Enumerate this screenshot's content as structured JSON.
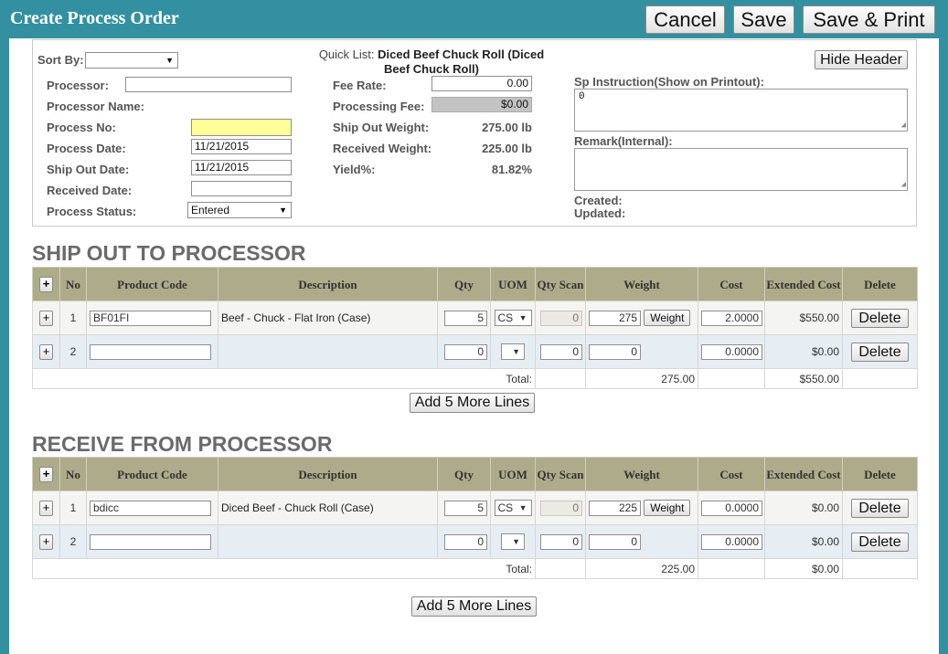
{
  "title": "Create Process Order",
  "top_buttons": {
    "cancel": "Cancel",
    "save": "Save",
    "save_print": "Save & Print"
  },
  "header": {
    "sort_by_label": "Sort By:",
    "sort_by_value": "",
    "processor_label": "Processor:",
    "processor_value": "",
    "processor_name_label": "Processor Name:",
    "process_no_label": "Process No:",
    "process_no_value": "",
    "process_date_label": "Process Date:",
    "process_date_value": "11/21/2015",
    "ship_out_date_label": "Ship Out Date:",
    "ship_out_date_value": "11/21/2015",
    "received_date_label": "Received Date:",
    "received_date_value": "",
    "process_status_label": "Process Status:",
    "process_status_value": "Entered",
    "quick_list_label": "Quick List:",
    "quick_list_value": "Diced Beef Chuck Roll (Diced Beef Chuck Roll)",
    "fee_rate_label": "Fee Rate:",
    "fee_rate_value": "0.00",
    "processing_fee_label": "Processing Fee:",
    "processing_fee_value": "$0.00",
    "ship_out_weight_label": "Ship Out Weight:",
    "ship_out_weight_value": "275.00 lb",
    "received_weight_label": "Received Weight:",
    "received_weight_value": "225.00 lb",
    "yield_label": "Yield%:",
    "yield_value": "81.82%",
    "hide_header_button": "Hide Header",
    "sp_instruction_label": "Sp Instruction(Show on Printout):",
    "sp_instruction_value": "0",
    "remark_label": "Remark(Internal):",
    "remark_value": "",
    "created_label": "Created:",
    "updated_label": "Updated:"
  },
  "columns": [
    "+",
    "No",
    "Product Code",
    "Description",
    "Qty",
    "UOM",
    "Qty Scan",
    "Weight",
    "Cost",
    "Extended Cost",
    "Delete"
  ],
  "ship_out": {
    "title": "SHIP OUT TO PROCESSOR",
    "rows": [
      {
        "no": "1",
        "product_code": "BF01FI",
        "description": "Beef - Chuck - Flat Iron (Case)",
        "qty": "5",
        "uom": "CS",
        "qty_scan": "0",
        "weight": "275",
        "weight_button": "Weight",
        "cost": "2.0000",
        "extended_cost": "$550.00",
        "delete": "Delete"
      },
      {
        "no": "2",
        "product_code": "",
        "description": "",
        "qty": "0",
        "uom": "",
        "qty_scan": "0",
        "weight": "0",
        "weight_button": "",
        "cost": "0.0000",
        "extended_cost": "$0.00",
        "delete": "Delete"
      }
    ],
    "total_label": "Total:",
    "total_weight": "275.00",
    "total_extended": "$550.00",
    "add_lines": "Add 5 More Lines"
  },
  "receive": {
    "title": "RECEIVE FROM PROCESSOR",
    "rows": [
      {
        "no": "1",
        "product_code": "bdicc",
        "description": "Diced Beef - Chuck Roll (Case)",
        "qty": "5",
        "uom": "CS",
        "qty_scan": "0",
        "weight": "225",
        "weight_button": "Weight",
        "cost": "0.0000",
        "extended_cost": "$0.00",
        "delete": "Delete"
      },
      {
        "no": "2",
        "product_code": "",
        "description": "",
        "qty": "0",
        "uom": "",
        "qty_scan": "0",
        "weight": "0",
        "weight_button": "",
        "cost": "0.0000",
        "extended_cost": "$0.00",
        "delete": "Delete"
      }
    ],
    "total_label": "Total:",
    "total_weight": "225.00",
    "total_extended": "$0.00",
    "add_lines": "Add 5 More Lines"
  },
  "colors": {
    "frame": "#3290a0",
    "table_header": "#aeab8b",
    "row_alt": "#e6eef3",
    "highlight_input": "#ffff99"
  }
}
